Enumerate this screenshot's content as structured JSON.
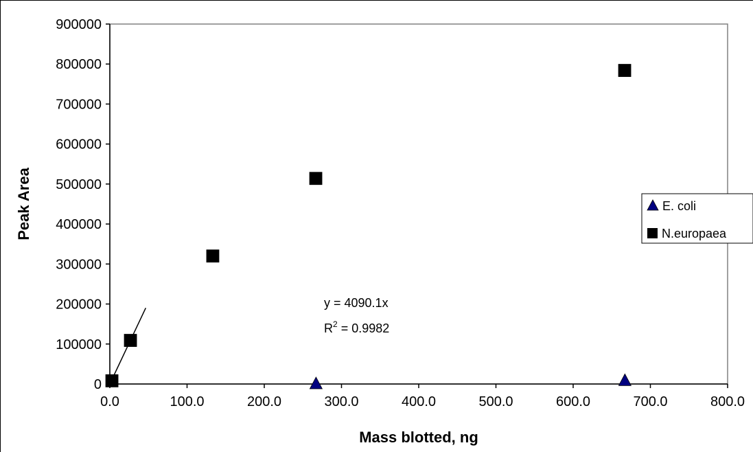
{
  "chart_data": {
    "type": "scatter",
    "xlabel": "Mass blotted, ng",
    "ylabel": "Peak Area",
    "xlim": [
      0,
      800
    ],
    "ylim": [
      0,
      900000
    ],
    "x_ticks": [
      "0.0",
      "100.0",
      "200.0",
      "300.0",
      "400.0",
      "500.0",
      "600.0",
      "700.0",
      "800.0"
    ],
    "y_ticks": [
      "0",
      "100000",
      "200000",
      "300000",
      "400000",
      "500000",
      "600000",
      "700000",
      "800000",
      "900000"
    ],
    "x_tick_values": [
      0,
      100,
      200,
      300,
      400,
      500,
      600,
      700,
      800
    ],
    "y_tick_values": [
      0,
      100000,
      200000,
      300000,
      400000,
      500000,
      600000,
      700000,
      800000,
      900000
    ],
    "grid": false,
    "legend_position": "right",
    "series": [
      {
        "name": "E. coli",
        "marker": "triangle",
        "color": "#000080",
        "points": [
          {
            "x": 267,
            "y": 0
          },
          {
            "x": 667,
            "y": 8000
          }
        ]
      },
      {
        "name": "N.europaea",
        "marker": "square",
        "color": "#000000",
        "points": [
          {
            "x": 2.7,
            "y": 8000
          },
          {
            "x": 26.7,
            "y": 109000
          },
          {
            "x": 133.3,
            "y": 320000
          },
          {
            "x": 266.7,
            "y": 514000
          },
          {
            "x": 666.7,
            "y": 784000
          }
        ]
      }
    ],
    "trendline": {
      "slope": 4090.1,
      "x_range": [
        0,
        46.5
      ],
      "equation": "y = 4090.1x",
      "r2_prefix": "R",
      "r2_superscript": "2",
      "r2_value": " = 0.9982"
    }
  }
}
